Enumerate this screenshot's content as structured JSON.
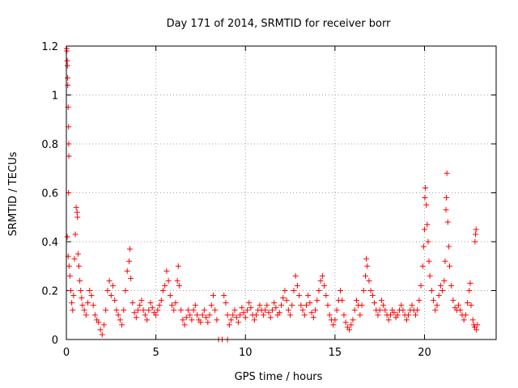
{
  "chart_data": {
    "type": "scatter",
    "title": "Day 171 of 2014, SRMTID for receiver borr",
    "xlabel": "GPS time / hours",
    "ylabel": "SRMTID / TECUs",
    "xlim": [
      0,
      24
    ],
    "ylim": [
      0,
      1.2
    ],
    "xticks": [
      0,
      5,
      10,
      15,
      20
    ],
    "yticks": [
      0,
      0.2,
      0.4,
      0.6,
      0.8,
      1,
      1.2
    ],
    "xtick_labels": [
      "0",
      "5",
      "10",
      "15",
      "20"
    ],
    "ytick_labels": [
      "0",
      "0.2",
      "0.4",
      "0.6",
      "0.8",
      "1",
      "1.2"
    ],
    "grid": true,
    "marker": "+",
    "series": [
      {
        "name": "SRMTID",
        "color": "#ff0000",
        "points": [
          [
            0.02,
            1.19
          ],
          [
            0.03,
            1.18
          ],
          [
            0.05,
            1.14
          ],
          [
            0.06,
            1.12
          ],
          [
            0.07,
            1.07
          ],
          [
            0.08,
            1.04
          ],
          [
            0.1,
            0.95
          ],
          [
            0.12,
            0.87
          ],
          [
            0.13,
            0.8
          ],
          [
            0.14,
            0.75
          ],
          [
            0.12,
            0.6
          ],
          [
            0.05,
            0.42
          ],
          [
            0.1,
            0.34
          ],
          [
            0.15,
            0.3
          ],
          [
            0.2,
            0.26
          ],
          [
            0.25,
            0.2
          ],
          [
            0.3,
            0.15
          ],
          [
            0.35,
            0.12
          ],
          [
            0.4,
            0.18
          ],
          [
            0.45,
            0.33
          ],
          [
            0.5,
            0.43
          ],
          [
            0.55,
            0.54
          ],
          [
            0.6,
            0.52
          ],
          [
            0.62,
            0.5
          ],
          [
            0.65,
            0.35
          ],
          [
            0.7,
            0.3
          ],
          [
            0.75,
            0.24
          ],
          [
            0.8,
            0.2
          ],
          [
            0.85,
            0.17
          ],
          [
            0.9,
            0.14
          ],
          [
            1.0,
            0.12
          ],
          [
            1.1,
            0.1
          ],
          [
            1.2,
            0.15
          ],
          [
            1.3,
            0.2
          ],
          [
            1.4,
            0.18
          ],
          [
            1.5,
            0.14
          ],
          [
            1.6,
            0.1
          ],
          [
            1.7,
            0.08
          ],
          [
            1.8,
            0.07
          ],
          [
            1.9,
            0.04
          ],
          [
            2.0,
            0.02
          ],
          [
            2.1,
            0.06
          ],
          [
            2.2,
            0.12
          ],
          [
            2.3,
            0.2
          ],
          [
            2.4,
            0.24
          ],
          [
            2.5,
            0.18
          ],
          [
            2.6,
            0.22
          ],
          [
            2.7,
            0.16
          ],
          [
            2.8,
            0.12
          ],
          [
            2.9,
            0.1
          ],
          [
            3.0,
            0.08
          ],
          [
            3.1,
            0.06
          ],
          [
            3.2,
            0.12
          ],
          [
            3.3,
            0.2
          ],
          [
            3.4,
            0.28
          ],
          [
            3.5,
            0.32
          ],
          [
            3.55,
            0.37
          ],
          [
            3.6,
            0.25
          ],
          [
            3.7,
            0.15
          ],
          [
            3.8,
            0.11
          ],
          [
            3.9,
            0.09
          ],
          [
            4.0,
            0.12
          ],
          [
            4.1,
            0.14
          ],
          [
            4.2,
            0.16
          ],
          [
            4.3,
            0.12
          ],
          [
            4.4,
            0.1
          ],
          [
            4.5,
            0.08
          ],
          [
            4.6,
            0.12
          ],
          [
            4.7,
            0.15
          ],
          [
            4.8,
            0.13
          ],
          [
            4.9,
            0.11
          ],
          [
            5.0,
            0.1
          ],
          [
            5.1,
            0.12
          ],
          [
            5.2,
            0.14
          ],
          [
            5.3,
            0.16
          ],
          [
            5.4,
            0.2
          ],
          [
            5.5,
            0.22
          ],
          [
            5.6,
            0.28
          ],
          [
            5.7,
            0.24
          ],
          [
            5.8,
            0.18
          ],
          [
            5.9,
            0.14
          ],
          [
            6.0,
            0.12
          ],
          [
            6.1,
            0.15
          ],
          [
            6.2,
            0.24
          ],
          [
            6.25,
            0.3
          ],
          [
            6.3,
            0.22
          ],
          [
            6.4,
            0.12
          ],
          [
            6.5,
            0.08
          ],
          [
            6.6,
            0.06
          ],
          [
            6.7,
            0.09
          ],
          [
            6.8,
            0.12
          ],
          [
            6.9,
            0.1
          ],
          [
            7.0,
            0.08
          ],
          [
            7.1,
            0.12
          ],
          [
            7.2,
            0.14
          ],
          [
            7.3,
            0.1
          ],
          [
            7.4,
            0.08
          ],
          [
            7.5,
            0.07
          ],
          [
            7.6,
            0.1
          ],
          [
            7.7,
            0.12
          ],
          [
            7.8,
            0.09
          ],
          [
            7.9,
            0.07
          ],
          [
            8.0,
            0.1
          ],
          [
            8.1,
            0.14
          ],
          [
            8.2,
            0.18
          ],
          [
            8.3,
            0.12
          ],
          [
            8.4,
            0.08
          ],
          [
            8.5,
            0.0
          ],
          [
            8.7,
            0.0
          ],
          [
            9.0,
            0.0
          ],
          [
            8.8,
            0.18
          ],
          [
            8.9,
            0.15
          ],
          [
            9.0,
            0.1
          ],
          [
            9.1,
            0.06
          ],
          [
            9.2,
            0.08
          ],
          [
            9.3,
            0.1
          ],
          [
            9.4,
            0.12
          ],
          [
            9.5,
            0.09
          ],
          [
            9.6,
            0.07
          ],
          [
            9.7,
            0.1
          ],
          [
            9.8,
            0.13
          ],
          [
            9.9,
            0.11
          ],
          [
            10.0,
            0.09
          ],
          [
            10.1,
            0.12
          ],
          [
            10.2,
            0.15
          ],
          [
            10.3,
            0.13
          ],
          [
            10.4,
            0.1
          ],
          [
            10.5,
            0.08
          ],
          [
            10.6,
            0.1
          ],
          [
            10.7,
            0.12
          ],
          [
            10.8,
            0.14
          ],
          [
            10.9,
            0.12
          ],
          [
            11.0,
            0.1
          ],
          [
            11.1,
            0.12
          ],
          [
            11.2,
            0.14
          ],
          [
            11.3,
            0.11
          ],
          [
            11.4,
            0.09
          ],
          [
            11.5,
            0.12
          ],
          [
            11.6,
            0.15
          ],
          [
            11.7,
            0.13
          ],
          [
            11.8,
            0.1
          ],
          [
            11.9,
            0.11
          ],
          [
            12.0,
            0.14
          ],
          [
            12.1,
            0.17
          ],
          [
            12.2,
            0.2
          ],
          [
            12.3,
            0.16
          ],
          [
            12.4,
            0.12
          ],
          [
            12.5,
            0.1
          ],
          [
            12.6,
            0.14
          ],
          [
            12.7,
            0.2
          ],
          [
            12.8,
            0.26
          ],
          [
            12.9,
            0.22
          ],
          [
            13.0,
            0.18
          ],
          [
            13.1,
            0.14
          ],
          [
            13.2,
            0.12
          ],
          [
            13.3,
            0.1
          ],
          [
            13.4,
            0.14
          ],
          [
            13.5,
            0.18
          ],
          [
            13.6,
            0.15
          ],
          [
            13.7,
            0.11
          ],
          [
            13.8,
            0.09
          ],
          [
            13.9,
            0.12
          ],
          [
            14.0,
            0.16
          ],
          [
            14.1,
            0.2
          ],
          [
            14.2,
            0.24
          ],
          [
            14.3,
            0.26
          ],
          [
            14.4,
            0.22
          ],
          [
            14.5,
            0.18
          ],
          [
            14.6,
            0.14
          ],
          [
            14.7,
            0.1
          ],
          [
            14.8,
            0.08
          ],
          [
            14.9,
            0.06
          ],
          [
            15.0,
            0.08
          ],
          [
            15.1,
            0.12
          ],
          [
            15.2,
            0.16
          ],
          [
            15.3,
            0.2
          ],
          [
            15.4,
            0.16
          ],
          [
            15.5,
            0.1
          ],
          [
            15.6,
            0.07
          ],
          [
            15.7,
            0.05
          ],
          [
            15.8,
            0.04
          ],
          [
            15.9,
            0.06
          ],
          [
            16.0,
            0.08
          ],
          [
            16.1,
            0.12
          ],
          [
            16.2,
            0.16
          ],
          [
            16.3,
            0.14
          ],
          [
            16.4,
            0.1
          ],
          [
            16.5,
            0.14
          ],
          [
            16.6,
            0.2
          ],
          [
            16.7,
            0.26
          ],
          [
            16.75,
            0.33
          ],
          [
            16.8,
            0.3
          ],
          [
            16.9,
            0.24
          ],
          [
            17.0,
            0.2
          ],
          [
            17.1,
            0.18
          ],
          [
            17.2,
            0.15
          ],
          [
            17.3,
            0.12
          ],
          [
            17.4,
            0.1
          ],
          [
            17.5,
            0.12
          ],
          [
            17.6,
            0.16
          ],
          [
            17.7,
            0.14
          ],
          [
            17.8,
            0.12
          ],
          [
            17.9,
            0.1
          ],
          [
            18.0,
            0.08
          ],
          [
            18.1,
            0.1
          ],
          [
            18.2,
            0.12
          ],
          [
            18.3,
            0.11
          ],
          [
            18.4,
            0.09
          ],
          [
            18.5,
            0.1
          ],
          [
            18.6,
            0.12
          ],
          [
            18.7,
            0.14
          ],
          [
            18.8,
            0.12
          ],
          [
            18.9,
            0.1
          ],
          [
            19.0,
            0.08
          ],
          [
            19.1,
            0.1
          ],
          [
            19.2,
            0.12
          ],
          [
            19.3,
            0.14
          ],
          [
            19.4,
            0.12
          ],
          [
            19.5,
            0.1
          ],
          [
            19.6,
            0.12
          ],
          [
            19.7,
            0.16
          ],
          [
            19.8,
            0.22
          ],
          [
            19.9,
            0.3
          ],
          [
            19.95,
            0.38
          ],
          [
            20.0,
            0.45
          ],
          [
            20.02,
            0.58
          ],
          [
            20.05,
            0.62
          ],
          [
            20.1,
            0.55
          ],
          [
            20.15,
            0.47
          ],
          [
            20.2,
            0.4
          ],
          [
            20.25,
            0.32
          ],
          [
            20.3,
            0.26
          ],
          [
            20.4,
            0.2
          ],
          [
            20.5,
            0.16
          ],
          [
            20.6,
            0.12
          ],
          [
            20.7,
            0.14
          ],
          [
            20.8,
            0.18
          ],
          [
            20.9,
            0.22
          ],
          [
            21.0,
            0.2
          ],
          [
            21.1,
            0.24
          ],
          [
            21.15,
            0.32
          ],
          [
            21.2,
            0.53
          ],
          [
            21.22,
            0.58
          ],
          [
            21.25,
            0.68
          ],
          [
            21.3,
            0.48
          ],
          [
            21.35,
            0.38
          ],
          [
            21.4,
            0.3
          ],
          [
            21.5,
            0.22
          ],
          [
            21.6,
            0.16
          ],
          [
            21.7,
            0.13
          ],
          [
            21.8,
            0.12
          ],
          [
            21.9,
            0.14
          ],
          [
            22.0,
            0.12
          ],
          [
            22.1,
            0.1
          ],
          [
            22.2,
            0.08
          ],
          [
            22.3,
            0.1
          ],
          [
            22.4,
            0.15
          ],
          [
            22.5,
            0.2
          ],
          [
            22.55,
            0.23
          ],
          [
            22.6,
            0.14
          ],
          [
            22.7,
            0.08
          ],
          [
            22.75,
            0.06
          ],
          [
            22.8,
            0.05
          ],
          [
            22.82,
            0.4
          ],
          [
            22.85,
            0.43
          ],
          [
            22.88,
            0.45
          ],
          [
            22.9,
            0.04
          ],
          [
            22.95,
            0.06
          ]
        ]
      }
    ]
  }
}
